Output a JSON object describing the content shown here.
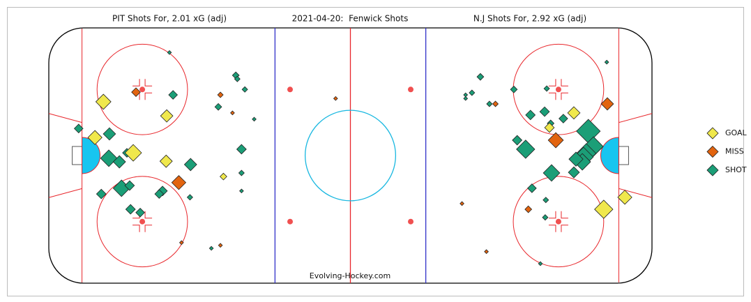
{
  "chart_data": {
    "type": "scatter",
    "title": "2021-04-20:  Fenwick Shots",
    "annotations": [
      "PIT Shots For, 2.01 xG (adj)",
      "N.J Shots For, 2.92 xG (adj)",
      "Evolving-Hockey.com"
    ],
    "xlim": [
      -100,
      100
    ],
    "ylim": [
      -42.5,
      42.5
    ],
    "legend": "right",
    "series": [
      {
        "name": "SHOT",
        "color": "#1b9e77",
        "x": [
          -60.0,
          -38.0,
          -37.5,
          -35.0,
          -43.8,
          -31.9,
          -58.8,
          -90.1,
          -79.9,
          -80.1,
          -76.6,
          -74.1,
          -53.0,
          -36.1,
          -36.1,
          -36.1,
          -75.9,
          -73.2,
          -82.6,
          -62.3,
          -63.4,
          -53.2,
          -72.9,
          -69.7,
          -46.1,
          85.0,
          43.1,
          40.3,
          38.2,
          38.2,
          54.2,
          65.1,
          46.1,
          59.7,
          64.4,
          70.6,
          66.4,
          78.9,
          80.6,
          78.2,
          77.3,
          76.9,
          55.3,
          58.1,
          74.8,
          66.7,
          74.1,
          60.2,
          64.8,
          64.6,
          63.0
        ],
        "values": [
          34.3,
          26.7,
          25.5,
          22.0,
          16.2,
          12.1,
          20.2,
          9.0,
          7.2,
          -0.9,
          -2.1,
          0.9,
          -3.0,
          2.1,
          -5.8,
          -11.8,
          -10.9,
          -10.0,
          -12.8,
          -11.8,
          -12.8,
          -13.9,
          -17.9,
          -19.0,
          -30.9,
          31.1,
          26.2,
          20.9,
          20.2,
          19.0,
          22.0,
          22.3,
          17.2,
          13.5,
          14.6,
          12.3,
          10.7,
          8.1,
          3.0,
          0.7,
          -0.5,
          -2.1,
          5.1,
          2.1,
          -1.2,
          -5.8,
          -5.6,
          -10.9,
          -14.8,
          -20.6,
          -36.0
        ],
        "sizes": [
          0.01,
          0.03,
          0.02,
          0.02,
          0.03,
          0.01,
          0.05,
          0.05,
          0.1,
          0.18,
          0.1,
          0.05,
          0.1,
          0.06,
          0.02,
          0.01,
          0.18,
          0.06,
          0.06,
          0.06,
          0.05,
          0.02,
          0.06,
          0.05,
          0.01,
          0.01,
          0.03,
          0.02,
          0.01,
          0.01,
          0.03,
          0.02,
          0.02,
          0.06,
          0.06,
          0.05,
          0.03,
          0.37,
          0.25,
          0.25,
          0.25,
          0.18,
          0.06,
          0.22,
          0.13,
          0.18,
          0.08,
          0.05,
          0.02,
          0.02,
          0.01
        ]
      },
      {
        "name": "MISS",
        "color": "#e2640f",
        "x": [
          -71.1,
          -43.1,
          -39.1,
          -56.9,
          -56.0,
          -43.1,
          -4.9,
          48.1,
          85.2,
          68.1,
          37.0,
          59.0,
          45.1
        ],
        "values": [
          21.1,
          20.2,
          14.2,
          -9.0,
          -29.0,
          -29.9,
          19.0,
          17.2,
          17.2,
          5.1,
          -16.0,
          -17.9,
          -32.0
        ],
        "sizes": [
          0.05,
          0.02,
          0.01,
          0.13,
          0.01,
          0.01,
          0.01,
          0.02,
          0.1,
          0.15,
          0.01,
          0.03,
          0.01
        ]
      },
      {
        "name": "GOAL",
        "color": "#f0e84c",
        "x": [
          -81.9,
          -84.7,
          -72.0,
          -60.9,
          -61.1,
          -42.1,
          74.1,
          66.0,
          84.0,
          91.0
        ],
        "values": [
          17.9,
          6.0,
          0.9,
          13.2,
          -1.9,
          -7.0,
          14.2,
          9.3,
          -17.9,
          -13.9
        ],
        "sizes": [
          0.15,
          0.13,
          0.18,
          0.1,
          0.1,
          0.03,
          0.1,
          0.06,
          0.22,
          0.13
        ]
      }
    ]
  }
}
